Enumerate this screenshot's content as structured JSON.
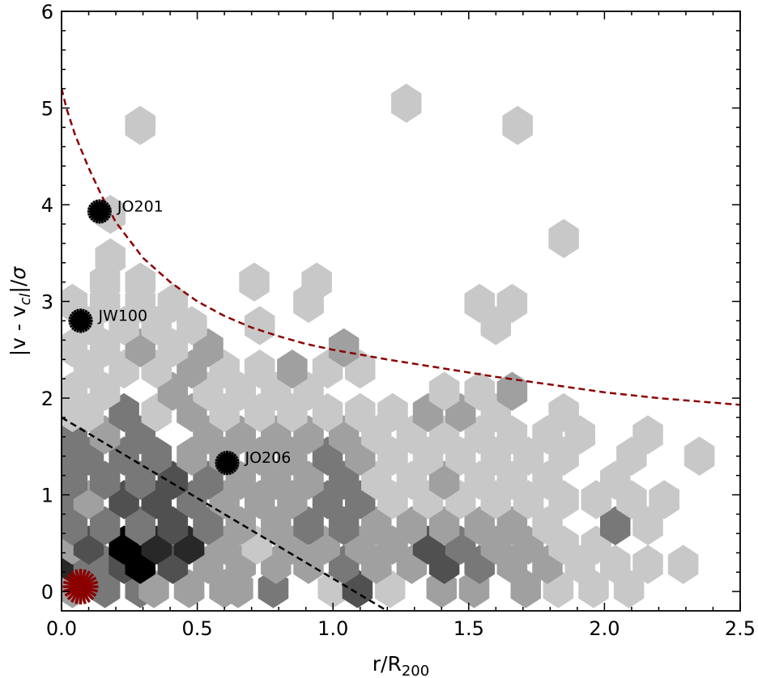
{
  "chart_data": {
    "type": "scatter",
    "title": "",
    "xlabel": "r/R",
    "xlabel_sub": "200",
    "ylabel_parts": [
      "|v - v",
      "cl",
      "|/",
      "σ"
    ],
    "xlim": [
      0,
      2.5
    ],
    "ylim": [
      -0.2,
      6.0
    ],
    "x_ticks": [
      "0.0",
      "0.5",
      "1.0",
      "1.5",
      "2.0",
      "2.5"
    ],
    "y_ticks": [
      "0",
      "1",
      "2",
      "3",
      "4",
      "5",
      "6"
    ],
    "grid": false,
    "hexbin": {
      "gridsize": 20,
      "xmin": 0,
      "xmax": 2.5,
      "ymin": -0.2,
      "ymax": 6.0,
      "colormap": "Greys",
      "max_count": 6,
      "cells": [
        [
          0.04,
          0.03,
          2
        ],
        [
          0.16,
          0.03,
          3
        ],
        [
          0.29,
          0.03,
          3
        ],
        [
          0.34,
          0.03,
          2
        ],
        [
          0.47,
          0.03,
          2
        ],
        [
          0.6,
          0.03,
          2
        ],
        [
          0.65,
          0.03,
          2
        ],
        [
          0.78,
          0.03,
          3
        ],
        [
          1.0,
          0.03,
          1
        ],
        [
          1.09,
          0.03,
          4
        ],
        [
          1.21,
          0.03,
          1
        ],
        [
          1.4,
          0.03,
          2
        ],
        [
          1.52,
          0.03,
          2
        ],
        [
          1.71,
          0.03,
          2
        ],
        [
          1.83,
          0.03,
          1
        ],
        [
          1.96,
          0.03,
          1
        ],
        [
          2.09,
          0.03,
          1
        ],
        [
          0.04,
          0.28,
          5
        ],
        [
          0.1,
          0.28,
          3
        ],
        [
          0.16,
          0.28,
          3
        ],
        [
          0.23,
          0.28,
          4
        ],
        [
          0.29,
          0.28,
          6
        ],
        [
          0.41,
          0.28,
          4
        ],
        [
          0.54,
          0.28,
          2
        ],
        [
          0.66,
          0.28,
          2
        ],
        [
          0.79,
          0.28,
          2
        ],
        [
          0.91,
          0.28,
          2
        ],
        [
          1.04,
          0.28,
          3
        ],
        [
          1.16,
          0.28,
          2
        ],
        [
          1.29,
          0.28,
          2
        ],
        [
          1.41,
          0.28,
          4
        ],
        [
          1.54,
          0.28,
          3
        ],
        [
          1.66,
          0.28,
          2
        ],
        [
          1.79,
          0.28,
          2
        ],
        [
          1.91,
          0.28,
          1
        ],
        [
          2.04,
          0.28,
          1
        ],
        [
          2.16,
          0.28,
          1
        ],
        [
          2.29,
          0.28,
          1
        ],
        [
          0.04,
          0.48,
          2
        ],
        [
          0.1,
          0.48,
          4
        ],
        [
          0.23,
          0.48,
          6
        ],
        [
          0.35,
          0.48,
          5
        ],
        [
          0.47,
          0.48,
          5
        ],
        [
          0.6,
          0.48,
          2
        ],
        [
          0.72,
          0.48,
          1
        ],
        [
          0.85,
          0.48,
          2
        ],
        [
          0.97,
          0.48,
          2
        ],
        [
          1.1,
          0.48,
          2
        ],
        [
          1.22,
          0.48,
          2
        ],
        [
          1.35,
          0.48,
          4
        ],
        [
          1.47,
          0.48,
          3
        ],
        [
          1.6,
          0.48,
          2
        ],
        [
          1.72,
          0.48,
          2
        ],
        [
          1.85,
          0.48,
          1
        ],
        [
          1.97,
          0.48,
          1
        ],
        [
          0.04,
          0.68,
          3
        ],
        [
          0.16,
          0.68,
          3
        ],
        [
          0.29,
          0.68,
          3
        ],
        [
          0.41,
          0.68,
          4
        ],
        [
          0.54,
          0.68,
          3
        ],
        [
          0.66,
          0.68,
          2
        ],
        [
          0.79,
          0.68,
          2
        ],
        [
          0.91,
          0.68,
          3
        ],
        [
          1.04,
          0.68,
          3
        ],
        [
          1.16,
          0.68,
          2
        ],
        [
          1.29,
          0.68,
          2
        ],
        [
          1.41,
          0.68,
          2
        ],
        [
          1.54,
          0.68,
          2
        ],
        [
          1.66,
          0.68,
          2
        ],
        [
          1.79,
          0.68,
          1
        ],
        [
          2.04,
          0.68,
          3
        ],
        [
          2.16,
          0.68,
          1
        ],
        [
          0.04,
          0.95,
          3
        ],
        [
          0.1,
          0.95,
          2
        ],
        [
          0.23,
          0.95,
          4
        ],
        [
          0.35,
          0.95,
          4
        ],
        [
          0.48,
          0.95,
          3
        ],
        [
          0.6,
          0.95,
          2
        ],
        [
          0.73,
          0.95,
          2
        ],
        [
          0.85,
          0.95,
          2
        ],
        [
          0.98,
          0.95,
          3
        ],
        [
          1.1,
          0.95,
          3
        ],
        [
          1.22,
          0.95,
          1
        ],
        [
          1.35,
          0.95,
          1
        ],
        [
          1.47,
          0.95,
          1
        ],
        [
          1.6,
          0.95,
          1
        ],
        [
          1.72,
          0.95,
          1
        ],
        [
          1.85,
          0.95,
          1
        ],
        [
          1.97,
          0.95,
          1
        ],
        [
          2.1,
          0.95,
          1
        ],
        [
          2.22,
          0.95,
          1
        ],
        [
          0.04,
          1.15,
          3
        ],
        [
          0.16,
          1.15,
          3
        ],
        [
          0.29,
          1.15,
          3
        ],
        [
          0.41,
          1.15,
          4
        ],
        [
          0.54,
          1.15,
          3
        ],
        [
          0.66,
          1.15,
          2
        ],
        [
          0.79,
          1.15,
          2
        ],
        [
          0.91,
          1.15,
          2
        ],
        [
          1.04,
          1.15,
          3
        ],
        [
          1.16,
          1.15,
          1
        ],
        [
          1.29,
          1.15,
          1
        ],
        [
          1.41,
          1.15,
          2
        ],
        [
          1.54,
          1.15,
          1
        ],
        [
          1.66,
          1.15,
          1
        ],
        [
          1.79,
          1.15,
          1
        ],
        [
          2.04,
          1.15,
          1
        ],
        [
          0.04,
          1.4,
          3
        ],
        [
          0.1,
          1.4,
          3
        ],
        [
          0.23,
          1.4,
          3
        ],
        [
          0.35,
          1.4,
          3
        ],
        [
          0.48,
          1.4,
          2
        ],
        [
          0.6,
          1.4,
          2
        ],
        [
          0.73,
          1.4,
          2
        ],
        [
          0.85,
          1.4,
          2
        ],
        [
          0.98,
          1.4,
          3
        ],
        [
          1.1,
          1.4,
          2
        ],
        [
          1.22,
          1.4,
          1
        ],
        [
          1.35,
          1.4,
          1
        ],
        [
          1.47,
          1.4,
          1
        ],
        [
          1.6,
          1.4,
          1
        ],
        [
          1.72,
          1.4,
          1
        ],
        [
          1.85,
          1.4,
          1
        ],
        [
          2.1,
          1.4,
          1
        ],
        [
          2.35,
          1.4,
          1
        ],
        [
          0.04,
          1.62,
          3
        ],
        [
          0.16,
          1.62,
          2
        ],
        [
          0.29,
          1.62,
          3
        ],
        [
          0.54,
          1.62,
          2
        ],
        [
          0.66,
          1.62,
          2
        ],
        [
          0.79,
          1.62,
          2
        ],
        [
          0.91,
          1.62,
          2
        ],
        [
          1.04,
          1.62,
          2
        ],
        [
          1.16,
          1.62,
          1
        ],
        [
          1.29,
          1.62,
          1
        ],
        [
          1.41,
          1.62,
          1
        ],
        [
          1.54,
          1.62,
          1
        ],
        [
          1.66,
          1.62,
          1
        ],
        [
          1.79,
          1.62,
          1
        ],
        [
          1.91,
          1.62,
          1
        ],
        [
          2.16,
          1.62,
          1
        ],
        [
          0.04,
          1.85,
          1
        ],
        [
          0.1,
          1.85,
          1
        ],
        [
          0.23,
          1.85,
          3
        ],
        [
          0.35,
          1.85,
          1
        ],
        [
          0.48,
          1.85,
          2
        ],
        [
          0.6,
          1.85,
          1
        ],
        [
          0.73,
          1.85,
          1
        ],
        [
          0.85,
          1.85,
          1
        ],
        [
          0.98,
          1.85,
          1
        ],
        [
          1.1,
          1.85,
          1
        ],
        [
          1.22,
          1.85,
          1
        ],
        [
          1.35,
          1.85,
          2
        ],
        [
          1.47,
          1.85,
          2
        ],
        [
          1.6,
          1.85,
          1
        ],
        [
          1.85,
          1.85,
          1
        ],
        [
          0.04,
          2.07,
          1
        ],
        [
          0.16,
          2.07,
          1
        ],
        [
          0.41,
          2.07,
          2
        ],
        [
          0.54,
          2.07,
          1
        ],
        [
          0.66,
          2.07,
          1
        ],
        [
          0.79,
          2.07,
          1
        ],
        [
          0.91,
          2.07,
          1
        ],
        [
          1.41,
          2.07,
          1
        ],
        [
          1.54,
          2.07,
          1
        ],
        [
          1.66,
          2.07,
          2
        ],
        [
          0.1,
          2.3,
          1
        ],
        [
          0.23,
          2.3,
          1
        ],
        [
          0.35,
          2.3,
          1
        ],
        [
          0.48,
          2.3,
          2
        ],
        [
          0.6,
          2.3,
          1
        ],
        [
          0.73,
          2.3,
          1
        ],
        [
          0.85,
          2.3,
          2
        ],
        [
          0.98,
          2.3,
          1
        ],
        [
          1.1,
          2.3,
          1
        ],
        [
          0.04,
          2.52,
          1
        ],
        [
          0.16,
          2.52,
          1
        ],
        [
          0.29,
          2.52,
          2
        ],
        [
          0.41,
          2.52,
          1
        ],
        [
          0.54,
          2.52,
          2
        ],
        [
          1.04,
          2.52,
          2
        ],
        [
          0.1,
          2.75,
          1
        ],
        [
          0.23,
          2.75,
          1
        ],
        [
          0.35,
          2.75,
          1
        ],
        [
          0.48,
          2.75,
          1
        ],
        [
          0.73,
          2.75,
          1
        ],
        [
          1.6,
          2.75,
          1
        ],
        [
          0.04,
          2.98,
          1
        ],
        [
          0.16,
          2.98,
          1
        ],
        [
          0.29,
          2.98,
          1
        ],
        [
          0.41,
          2.98,
          1
        ],
        [
          0.91,
          2.98,
          1
        ],
        [
          1.54,
          2.98,
          1
        ],
        [
          1.66,
          2.98,
          1
        ],
        [
          0.16,
          3.2,
          1
        ],
        [
          0.29,
          3.2,
          1
        ],
        [
          0.71,
          3.2,
          1
        ],
        [
          0.94,
          3.2,
          1
        ],
        [
          0.18,
          3.45,
          1
        ],
        [
          0.91,
          3.0,
          1
        ],
        [
          1.85,
          3.65,
          1
        ],
        [
          0.18,
          3.9,
          1
        ],
        [
          0.29,
          4.82,
          1
        ],
        [
          1.68,
          4.82,
          1
        ],
        [
          1.27,
          5.05,
          1
        ]
      ]
    },
    "galaxies": [
      {
        "name": "JO201",
        "x": 0.14,
        "y": 3.93,
        "color": "#000000"
      },
      {
        "name": "JW100",
        "x": 0.07,
        "y": 2.8,
        "color": "#000000"
      },
      {
        "name": "JO206",
        "x": 0.61,
        "y": 1.33,
        "color": "#000000"
      },
      {
        "name": "",
        "x": 0.07,
        "y": 0.05,
        "color": "#8b0000"
      }
    ],
    "escape_curve": {
      "color": "#8b0000",
      "style": "dashed",
      "points": [
        [
          0.0,
          5.2
        ],
        [
          0.02,
          4.98
        ],
        [
          0.05,
          4.72
        ],
        [
          0.1,
          4.38
        ],
        [
          0.15,
          4.08
        ],
        [
          0.2,
          3.82
        ],
        [
          0.3,
          3.45
        ],
        [
          0.4,
          3.2
        ],
        [
          0.5,
          3.0
        ],
        [
          0.6,
          2.85
        ],
        [
          0.7,
          2.73
        ],
        [
          0.8,
          2.64
        ],
        [
          0.9,
          2.56
        ],
        [
          1.0,
          2.5
        ],
        [
          1.2,
          2.4
        ],
        [
          1.4,
          2.31
        ],
        [
          1.6,
          2.22
        ],
        [
          1.8,
          2.14
        ],
        [
          2.0,
          2.06
        ],
        [
          2.2,
          2.0
        ],
        [
          2.5,
          1.93
        ]
      ]
    },
    "trapped_line": {
      "color": "#000000",
      "style": "dashed",
      "points": [
        [
          0.0,
          1.8
        ],
        [
          1.2,
          -0.2
        ]
      ]
    }
  }
}
